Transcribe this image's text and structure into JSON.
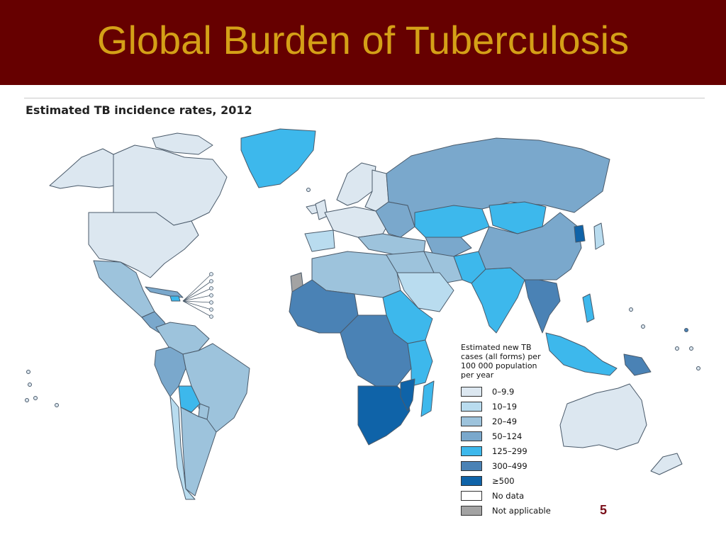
{
  "slide": {
    "title": "Global Burden of Tuberculosis",
    "page_number": "5"
  },
  "map": {
    "title": "Estimated TB incidence rates, 2012"
  },
  "legend": {
    "heading": "Estimated new TB cases (all forms) per 100 000 population per year",
    "items": [
      {
        "label": "0–9.9",
        "color": "#dce7f0"
      },
      {
        "label": "10–19",
        "color": "#b9dcef"
      },
      {
        "label": "20–49",
        "color": "#9dc3dc"
      },
      {
        "label": "50–124",
        "color": "#7aa8cc"
      },
      {
        "label": "125–299",
        "color": "#3db8ec"
      },
      {
        "label": "300–499",
        "color": "#4a82b5"
      },
      {
        "label": "≥500",
        "color": "#0f63a8"
      },
      {
        "label": "No data",
        "color": "#ffffff"
      },
      {
        "label": "Not applicable",
        "color": "#a3a3a3"
      }
    ]
  },
  "colors": {
    "title_bar": "#660000",
    "title_text": "#d4a017",
    "page_number": "#7a0f1a",
    "border": "#4a5a6a"
  }
}
